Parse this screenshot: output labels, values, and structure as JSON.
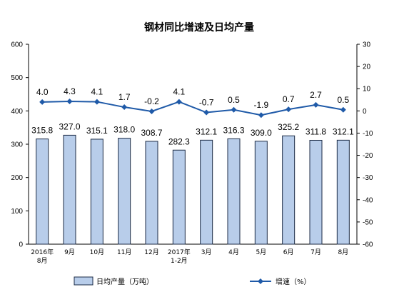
{
  "chart_data": {
    "type": "bar",
    "title": "钢材同比增速及日均产量",
    "categories": [
      [
        "2016年",
        "8月"
      ],
      [
        "9月"
      ],
      [
        "10月"
      ],
      [
        "11月"
      ],
      [
        "12月"
      ],
      [
        "2017年",
        "1-2月"
      ],
      [
        "3月"
      ],
      [
        "4月"
      ],
      [
        "5月"
      ],
      [
        "6月"
      ],
      [
        "7月"
      ],
      [
        "8月"
      ]
    ],
    "series": [
      {
        "name": "日均产量（万吨）",
        "type": "bar",
        "axis": "left",
        "values": [
          315.8,
          327.0,
          315.1,
          318.0,
          308.7,
          282.3,
          312.1,
          316.3,
          309.0,
          325.2,
          311.8,
          312.1
        ],
        "labels": [
          "315.8",
          "327.0",
          "315.1",
          "318.0",
          "308.7",
          "282.3",
          "312.1",
          "316.3",
          "309.0",
          "325.2",
          "311.8",
          "312.1"
        ]
      },
      {
        "name": "增速（%）",
        "type": "line",
        "axis": "right",
        "values": [
          4.0,
          4.3,
          4.1,
          1.7,
          -0.2,
          4.1,
          -0.7,
          0.5,
          -1.9,
          0.7,
          2.7,
          0.5
        ],
        "labels": [
          "4.0",
          "4.3",
          "4.1",
          "1.7",
          "-0.2",
          "4.1",
          "-0.7",
          "0.5",
          "-1.9",
          "0.7",
          "2.7",
          "0.5"
        ]
      }
    ],
    "y_left": {
      "lim": [
        0,
        600
      ],
      "ticks": [
        "0",
        "100",
        "200",
        "300",
        "400",
        "500",
        "600"
      ]
    },
    "y_right": {
      "lim": [
        -60,
        30
      ],
      "ticks": [
        "-60",
        "-50",
        "-40",
        "-30",
        "-20",
        "-10",
        "0",
        "10",
        "20",
        "30"
      ]
    },
    "grid": false,
    "legend": "bottom",
    "colors": {
      "bar_fill": "#b8cdea",
      "bar_stroke": "#1c2b45",
      "line": "#1f5aa8",
      "axis": "#000000"
    }
  }
}
